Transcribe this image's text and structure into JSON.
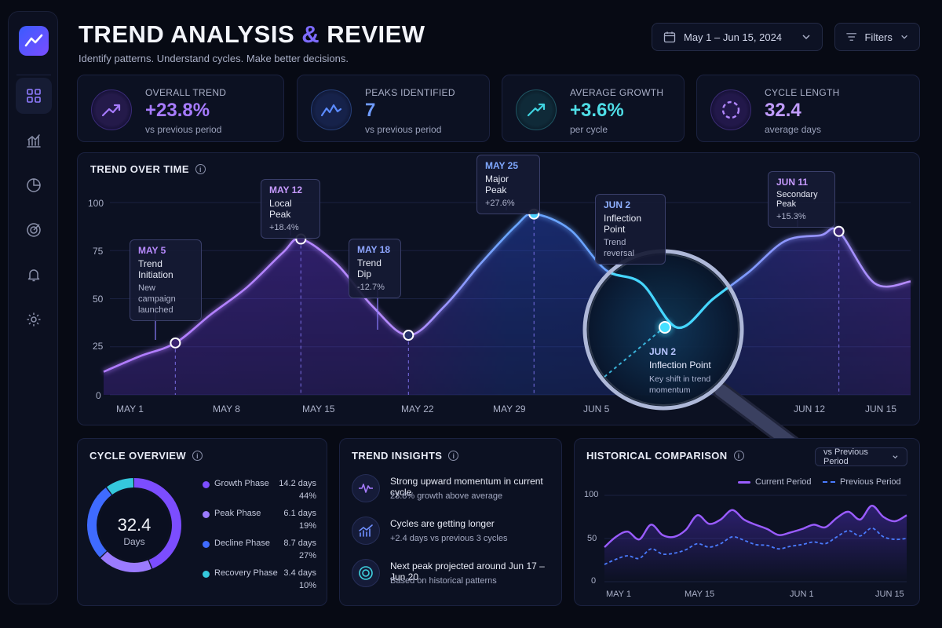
{
  "header": {
    "title_main": "TREND ANALYSIS",
    "title_amp": "&",
    "title_end": "REVIEW",
    "subtitle": "Identify patterns. Understand cycles. Make better decisions.",
    "date_range": "May 1 – Jun 15, 2024",
    "filters_label": "Filters"
  },
  "sidebar": {
    "items": [
      {
        "icon": "grid-icon",
        "active": true
      },
      {
        "icon": "bar-chart-icon",
        "active": false
      },
      {
        "icon": "pie-chart-icon",
        "active": false
      },
      {
        "icon": "target-icon",
        "active": false
      },
      {
        "icon": "bell-icon",
        "active": false
      },
      {
        "icon": "gear-icon",
        "active": false
      }
    ]
  },
  "kpis": [
    {
      "label": "OVERALL TREND",
      "value": "+23.8%",
      "sub": "vs previous period",
      "color": "#a77bff",
      "icon": "trend-up-icon"
    },
    {
      "label": "PEAKS IDENTIFIED",
      "value": "7",
      "sub": "vs previous period",
      "color": "#5b8bff",
      "icon": "peaks-icon"
    },
    {
      "label": "AVERAGE GROWTH",
      "value": "+3.6%",
      "sub": "per cycle",
      "color": "#3fd3e0",
      "icon": "growth-icon"
    },
    {
      "label": "CYCLE LENGTH",
      "value": "32.4",
      "sub": "average days",
      "color": "#b287ff",
      "icon": "cycle-icon"
    }
  ],
  "trend_chart": {
    "title": "TREND OVER TIME",
    "y_ticks": [
      "100",
      "75",
      "50",
      "25",
      "0"
    ],
    "x_ticks": [
      "MAY 1",
      "MAY 8",
      "MAY 15",
      "MAY 22",
      "MAY 29",
      "JUN 5",
      "JUN 12",
      "JUN 15"
    ],
    "callouts": [
      {
        "date": "MAY 5",
        "title": "Trend Initiation",
        "sub": "New campaign launched",
        "color": "#b98bff"
      },
      {
        "date": "MAY 12",
        "title": "Local Peak",
        "sub": "+18.4%",
        "color": "#c79bff"
      },
      {
        "date": "MAY 18",
        "title": "Trend Dip",
        "sub": "-12.7%",
        "color": "#8fa6ff"
      },
      {
        "date": "MAY 25",
        "title": "Major Peak",
        "sub": "+27.6%",
        "color": "#7fa8ff"
      },
      {
        "date": "JUN 2",
        "title": "Inflection Point",
        "sub": "Trend reversal",
        "color": "#8fb0ff"
      },
      {
        "date": "JUN 11",
        "title": "Secondary Peak",
        "sub": "+15.3%",
        "color": "#c79bff"
      }
    ],
    "magnifier": {
      "date": "JUN 2",
      "title": "Inflection Point",
      "sub": "Key shift in trend momentum"
    }
  },
  "chart_data": [
    {
      "type": "area",
      "title": "TREND OVER TIME",
      "x": [
        "May 1",
        "May 3",
        "May 5",
        "May 7",
        "May 9",
        "May 11",
        "May 12",
        "May 14",
        "May 16",
        "May 18",
        "May 20",
        "May 22",
        "May 24",
        "May 25",
        "May 27",
        "May 29",
        "May 31",
        "Jun 2",
        "Jun 4",
        "Jun 6",
        "Jun 8",
        "Jun 10",
        "Jun 11",
        "Jun 13",
        "Jun 15"
      ],
      "values": [
        12,
        20,
        27,
        42,
        56,
        74,
        81,
        68,
        46,
        31,
        46,
        68,
        88,
        94,
        86,
        65,
        58,
        35,
        50,
        64,
        80,
        83,
        85,
        58,
        59
      ],
      "ylim": [
        0,
        100
      ],
      "annotations": [
        {
          "x": "May 5",
          "y": 27,
          "label": "Trend Initiation"
        },
        {
          "x": "May 12",
          "y": 81,
          "label": "Local Peak"
        },
        {
          "x": "May 18",
          "y": 31,
          "label": "Trend Dip"
        },
        {
          "x": "May 25",
          "y": 94,
          "label": "Major Peak"
        },
        {
          "x": "Jun 2",
          "y": 35,
          "label": "Inflection Point"
        },
        {
          "x": "Jun 11",
          "y": 85,
          "label": "Secondary Peak"
        }
      ]
    },
    {
      "type": "pie",
      "title": "CYCLE OVERVIEW",
      "center_value": "32.4",
      "center_label": "Days",
      "slices": [
        {
          "name": "Growth Phase",
          "days": "14.2 days",
          "pct": "44%",
          "value": 44,
          "color": "#7c4dff"
        },
        {
          "name": "Peak Phase",
          "days": "6.1 days",
          "pct": "19%",
          "value": 19,
          "color": "#9b7bff"
        },
        {
          "name": "Decline Phase",
          "days": "8.7 days",
          "pct": "27%",
          "value": 27,
          "color": "#3f6bff"
        },
        {
          "name": "Recovery Phase",
          "days": "3.4 days",
          "pct": "10%",
          "value": 10,
          "color": "#35c8dc"
        }
      ]
    },
    {
      "type": "line",
      "title": "HISTORICAL COMPARISON",
      "ylim": [
        0,
        100
      ],
      "y_ticks": [
        "100",
        "50",
        "0"
      ],
      "x_ticks": [
        "MAY 1",
        "MAY 15",
        "JUN 1",
        "JUN 15"
      ],
      "series": [
        {
          "name": "Current Period",
          "values": [
            40,
            52,
            58,
            49,
            66,
            54,
            52,
            60,
            77,
            67,
            72,
            83,
            72,
            66,
            61,
            54,
            57,
            61,
            66,
            63,
            74,
            81,
            72,
            88,
            75,
            70,
            77
          ],
          "color": "#9a5cff"
        },
        {
          "name": "Previous Period",
          "values": [
            20,
            26,
            30,
            27,
            38,
            32,
            33,
            37,
            44,
            40,
            44,
            52,
            48,
            43,
            42,
            38,
            41,
            43,
            46,
            44,
            52,
            59,
            53,
            62,
            52,
            49,
            50
          ],
          "color": "#4a7bff"
        }
      ],
      "selector": "vs Previous Period"
    }
  ],
  "cycle_overview": {
    "title": "CYCLE OVERVIEW"
  },
  "insights": {
    "title": "TREND INSIGHTS",
    "items": [
      {
        "title": "Strong upward momentum in current cycle",
        "sub": "23.8% growth above average",
        "icon": "pulse-icon"
      },
      {
        "title": "Cycles are getting longer",
        "sub": "+2.4 days vs previous 3 cycles",
        "icon": "bars-trend-icon"
      },
      {
        "title": "Next peak projected around Jun 17 – Jun 20",
        "sub": "Based on historical patterns",
        "icon": "target-ring-icon"
      }
    ]
  },
  "historical": {
    "title": "HISTORICAL COMPARISON",
    "selector": "vs Previous Period",
    "legend_current": "Current Period",
    "legend_previous": "Previous Period"
  }
}
